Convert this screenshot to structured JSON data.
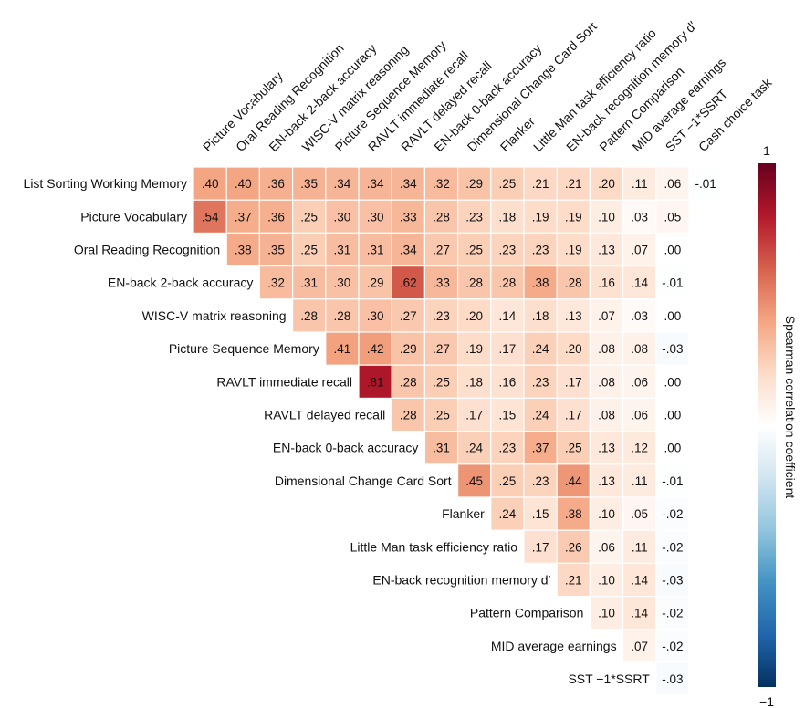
{
  "chart_data": {
    "type": "heatmap",
    "colorbar": {
      "label": "Spearman correlation coefficient",
      "max_label": "1",
      "min_label": "−1",
      "range": [
        -1,
        1
      ],
      "colors": [
        "#053061",
        "#2166ac",
        "#4393c3",
        "#92c5de",
        "#d1e5f0",
        "#ffffff",
        "#fddbc7",
        "#f4a582",
        "#d6604d",
        "#b2182b",
        "#67001f"
      ]
    },
    "columns": [
      "Picture Vocabulary",
      "Oral Reading Recognition",
      "EN-back 2-back accuracy",
      "WISC-V matrix reasoning",
      "Picture Sequence Memory",
      "RAVLT immediate recall",
      "RAVLT delayed recall",
      "EN-back 0-back accuracy",
      "Dimensional Change Card Sort",
      "Flanker",
      "Little Man task efficiency ratio",
      "EN-back recognition memory d′",
      "Pattern Comparison",
      "MID average earnings",
      "SST −1*SSRT",
      "Cash choice task"
    ],
    "rows": [
      {
        "label": "List Sorting Working Memory",
        "labels": [
          ".40",
          ".40",
          ".36",
          ".35",
          ".34",
          ".34",
          ".34",
          ".32",
          ".29",
          ".25",
          ".21",
          ".21",
          ".20",
          ".11",
          ".06",
          "-.01"
        ],
        "values": [
          0.4,
          0.4,
          0.36,
          0.35,
          0.34,
          0.34,
          0.34,
          0.32,
          0.29,
          0.25,
          0.21,
          0.21,
          0.2,
          0.11,
          0.06,
          -0.01
        ]
      },
      {
        "label": "Picture Vocabulary",
        "labels": [
          ".54",
          ".37",
          ".36",
          ".25",
          ".30",
          ".30",
          ".33",
          ".28",
          ".23",
          ".18",
          ".19",
          ".19",
          ".10",
          ".03",
          ".05"
        ],
        "values": [
          0.54,
          0.37,
          0.36,
          0.25,
          0.3,
          0.3,
          0.33,
          0.28,
          0.23,
          0.18,
          0.19,
          0.19,
          0.1,
          0.03,
          0.05
        ]
      },
      {
        "label": "Oral Reading Recognition",
        "labels": [
          ".38",
          ".35",
          ".25",
          ".31",
          ".31",
          ".34",
          ".27",
          ".25",
          ".23",
          ".23",
          ".19",
          ".13",
          ".07",
          ".00"
        ],
        "values": [
          0.38,
          0.35,
          0.25,
          0.31,
          0.31,
          0.34,
          0.27,
          0.25,
          0.23,
          0.23,
          0.19,
          0.13,
          0.07,
          0.0
        ]
      },
      {
        "label": "EN-back 2-back accuracy",
        "labels": [
          ".32",
          ".31",
          ".30",
          ".29",
          ".62",
          ".33",
          ".28",
          ".28",
          ".38",
          ".28",
          ".16",
          ".14",
          "-.01"
        ],
        "values": [
          0.32,
          0.31,
          0.3,
          0.29,
          0.62,
          0.33,
          0.28,
          0.28,
          0.38,
          0.28,
          0.16,
          0.14,
          -0.01
        ]
      },
      {
        "label": "WISC-V matrix reasoning",
        "labels": [
          ".28",
          ".28",
          ".30",
          ".27",
          ".23",
          ".20",
          ".14",
          ".18",
          ".13",
          ".07",
          ".03",
          ".00"
        ],
        "values": [
          0.28,
          0.28,
          0.3,
          0.27,
          0.23,
          0.2,
          0.14,
          0.18,
          0.13,
          0.07,
          0.03,
          0.0
        ]
      },
      {
        "label": "Picture Sequence Memory",
        "labels": [
          ".41",
          ".42",
          ".29",
          ".27",
          ".19",
          ".17",
          ".24",
          ".20",
          ".08",
          ".08",
          "-.03"
        ],
        "values": [
          0.41,
          0.42,
          0.29,
          0.27,
          0.19,
          0.17,
          0.24,
          0.2,
          0.08,
          0.08,
          -0.03
        ]
      },
      {
        "label": "RAVLT immediate recall",
        "labels": [
          ".81",
          ".28",
          ".25",
          ".18",
          ".16",
          ".23",
          ".17",
          ".08",
          ".06",
          ".00"
        ],
        "values": [
          0.81,
          0.28,
          0.25,
          0.18,
          0.16,
          0.23,
          0.17,
          0.08,
          0.06,
          0.0
        ]
      },
      {
        "label": "RAVLT delayed recall",
        "labels": [
          ".28",
          ".25",
          ".17",
          ".15",
          ".24",
          ".17",
          ".08",
          ".06",
          ".00"
        ],
        "values": [
          0.28,
          0.25,
          0.17,
          0.15,
          0.24,
          0.17,
          0.08,
          0.06,
          0.0
        ]
      },
      {
        "label": "EN-back 0-back accuracy",
        "labels": [
          ".31",
          ".24",
          ".23",
          ".37",
          ".25",
          ".13",
          ".12",
          ".00"
        ],
        "values": [
          0.31,
          0.24,
          0.23,
          0.37,
          0.25,
          0.13,
          0.12,
          0.0
        ]
      },
      {
        "label": "Dimensional Change Card Sort",
        "labels": [
          ".45",
          ".25",
          ".23",
          ".44",
          ".13",
          ".11",
          "-.01"
        ],
        "values": [
          0.45,
          0.25,
          0.23,
          0.44,
          0.13,
          0.11,
          -0.01
        ]
      },
      {
        "label": "Flanker",
        "labels": [
          ".24",
          ".15",
          ".38",
          ".10",
          ".05",
          "-.02"
        ],
        "values": [
          0.24,
          0.15,
          0.38,
          0.1,
          0.05,
          -0.02
        ]
      },
      {
        "label": "Little Man task efficiency ratio",
        "labels": [
          ".17",
          ".26",
          ".06",
          ".11",
          "-.02"
        ],
        "values": [
          0.17,
          0.26,
          0.06,
          0.11,
          -0.02
        ]
      },
      {
        "label": "EN-back recognition memory d′",
        "labels": [
          ".21",
          ".10",
          ".14",
          "-.03"
        ],
        "values": [
          0.21,
          0.1,
          0.14,
          -0.03
        ]
      },
      {
        "label": "Pattern Comparison",
        "labels": [
          ".10",
          ".14",
          "-.02"
        ],
        "values": [
          0.1,
          0.14,
          -0.02
        ]
      },
      {
        "label": "MID average earnings",
        "labels": [
          ".07",
          "-.02"
        ],
        "values": [
          0.07,
          -0.02
        ]
      },
      {
        "label": "SST −1*SSRT",
        "labels": [
          "-.03"
        ],
        "values": [
          -0.03
        ]
      }
    ]
  }
}
